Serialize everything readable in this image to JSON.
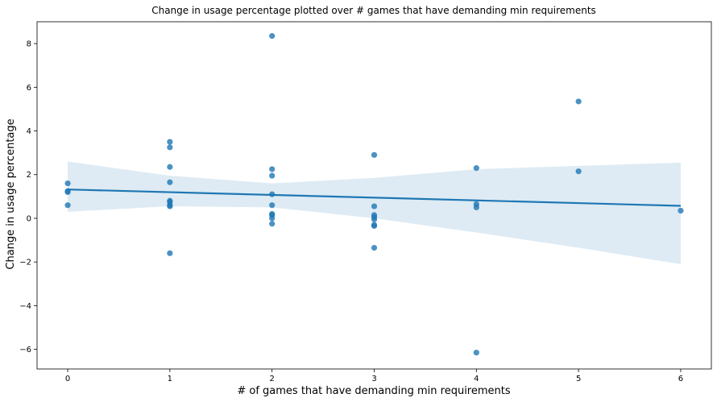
{
  "chart_data": {
    "type": "scatter",
    "title": "Change in usage percentage plotted over # games that have demanding min requirements",
    "xlabel": "# of games that have demanding min requirements",
    "ylabel": "Change in usage percentage",
    "xlim": [
      -0.3,
      6.3
    ],
    "ylim": [
      -6.9,
      9.0
    ],
    "xticks": [
      0,
      1,
      2,
      3,
      4,
      5,
      6
    ],
    "yticks": [
      -6,
      -4,
      -2,
      0,
      2,
      4,
      6,
      8
    ],
    "grid": false,
    "colors": {
      "points": "#1f77b4",
      "regression_line": "#1f77b4",
      "confidence_band": "#1f77b4"
    },
    "points": [
      {
        "x": 0,
        "y": 1.6
      },
      {
        "x": 0,
        "y": 1.2
      },
      {
        "x": 0,
        "y": 1.25
      },
      {
        "x": 0,
        "y": 0.6
      },
      {
        "x": 1,
        "y": 3.5
      },
      {
        "x": 1,
        "y": 3.25
      },
      {
        "x": 1,
        "y": 2.35
      },
      {
        "x": 1,
        "y": 1.65
      },
      {
        "x": 1,
        "y": 0.8
      },
      {
        "x": 1,
        "y": 0.75
      },
      {
        "x": 1,
        "y": 0.6
      },
      {
        "x": 1,
        "y": 0.55
      },
      {
        "x": 1,
        "y": -1.6
      },
      {
        "x": 2,
        "y": 8.35
      },
      {
        "x": 2,
        "y": 2.25
      },
      {
        "x": 2,
        "y": 1.95
      },
      {
        "x": 2,
        "y": 1.1
      },
      {
        "x": 2,
        "y": 0.6
      },
      {
        "x": 2,
        "y": 0.2
      },
      {
        "x": 2,
        "y": 0.15
      },
      {
        "x": 2,
        "y": 0.0
      },
      {
        "x": 2,
        "y": -0.25
      },
      {
        "x": 3,
        "y": 2.9
      },
      {
        "x": 3,
        "y": 0.55
      },
      {
        "x": 3,
        "y": 0.15
      },
      {
        "x": 3,
        "y": 0.05
      },
      {
        "x": 3,
        "y": -0.05
      },
      {
        "x": 3,
        "y": -0.3
      },
      {
        "x": 3,
        "y": -0.35
      },
      {
        "x": 3,
        "y": -1.35
      },
      {
        "x": 4,
        "y": 2.3
      },
      {
        "x": 4,
        "y": 0.65
      },
      {
        "x": 4,
        "y": 0.5
      },
      {
        "x": 4,
        "y": -6.15
      },
      {
        "x": 5,
        "y": 5.35
      },
      {
        "x": 5,
        "y": 2.15
      },
      {
        "x": 6,
        "y": 0.35
      }
    ],
    "regression": {
      "intercept": 1.32,
      "slope": -0.125
    },
    "confidence_band": [
      {
        "x": 0,
        "lower": 0.3,
        "upper": 2.6
      },
      {
        "x": 1,
        "lower": 0.55,
        "upper": 1.95
      },
      {
        "x": 2,
        "lower": 0.5,
        "upper": 1.6
      },
      {
        "x": 3,
        "lower": 0.0,
        "upper": 1.85
      },
      {
        "x": 4,
        "lower": -0.65,
        "upper": 2.25
      },
      {
        "x": 5,
        "lower": -1.35,
        "upper": 2.4
      },
      {
        "x": 6,
        "lower": -2.1,
        "upper": 2.55
      }
    ]
  }
}
